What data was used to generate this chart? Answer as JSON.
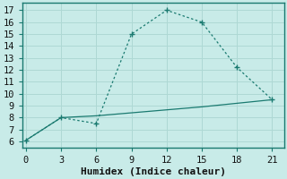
{
  "xlabel": "Humidex (Indice chaleur)",
  "background_color": "#c8ebe8",
  "grid_color": "#aed8d4",
  "line_color": "#1a7a70",
  "spine_color": "#1a7a70",
  "line1_x": [
    0,
    3,
    6,
    9,
    12,
    15,
    18,
    21
  ],
  "line1_y": [
    6.1,
    8.0,
    7.5,
    15.0,
    17.0,
    16.0,
    12.2,
    9.5
  ],
  "line1_marker_idx": [
    0,
    1,
    2,
    3,
    4,
    5,
    6,
    7
  ],
  "line2_x": [
    0,
    3,
    6,
    9,
    12,
    15,
    18,
    21
  ],
  "line2_y": [
    6.1,
    8.0,
    8.15,
    8.4,
    8.65,
    8.9,
    9.2,
    9.5
  ],
  "xlim": [
    -0.3,
    22.0
  ],
  "ylim": [
    5.5,
    17.6
  ],
  "xticks": [
    0,
    3,
    6,
    9,
    12,
    15,
    18,
    21
  ],
  "yticks": [
    6,
    7,
    8,
    9,
    10,
    11,
    12,
    13,
    14,
    15,
    16,
    17
  ],
  "xlabel_fontsize": 8,
  "tick_fontsize": 7.5
}
